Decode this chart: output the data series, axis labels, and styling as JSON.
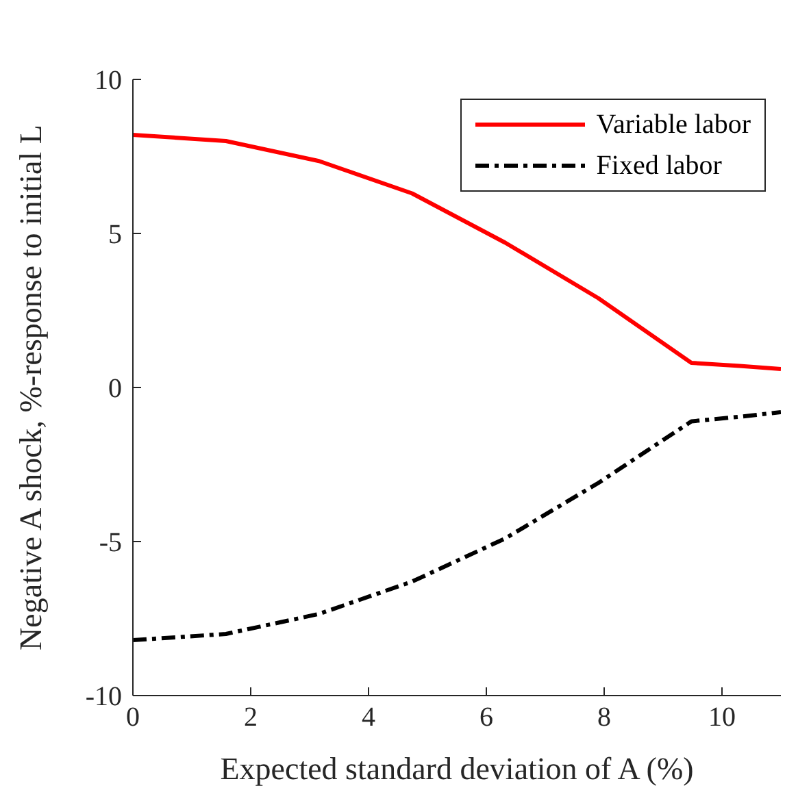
{
  "chart_data": {
    "type": "line",
    "xlabel": "Expected standard deviation of A (%)",
    "ylabel": "Negative A shock, %-response to initial L",
    "x": [
      0,
      1.58,
      3.16,
      4.74,
      6.32,
      7.9,
      9.48,
      10.3,
      11
    ],
    "series": [
      {
        "name": "Variable labor",
        "color": "#ff0000",
        "line_style": "solid",
        "values": [
          8.2,
          8.0,
          7.35,
          6.3,
          4.7,
          2.9,
          0.8,
          0.7,
          0.6
        ]
      },
      {
        "name": "Fixed labor",
        "color": "#000000",
        "line_style": "dashed",
        "values": [
          -8.2,
          -8.0,
          -7.35,
          -6.3,
          -4.9,
          -3.1,
          -1.1,
          -0.95,
          -0.8
        ]
      }
    ],
    "xlim": [
      0,
      11
    ],
    "xticks": [
      0,
      2,
      4,
      6,
      8,
      10
    ],
    "ylim": [
      -10,
      10
    ],
    "yticks": [
      -10,
      -5,
      0,
      5,
      10
    ],
    "grid": false,
    "legend": "top right",
    "marker": "none"
  }
}
